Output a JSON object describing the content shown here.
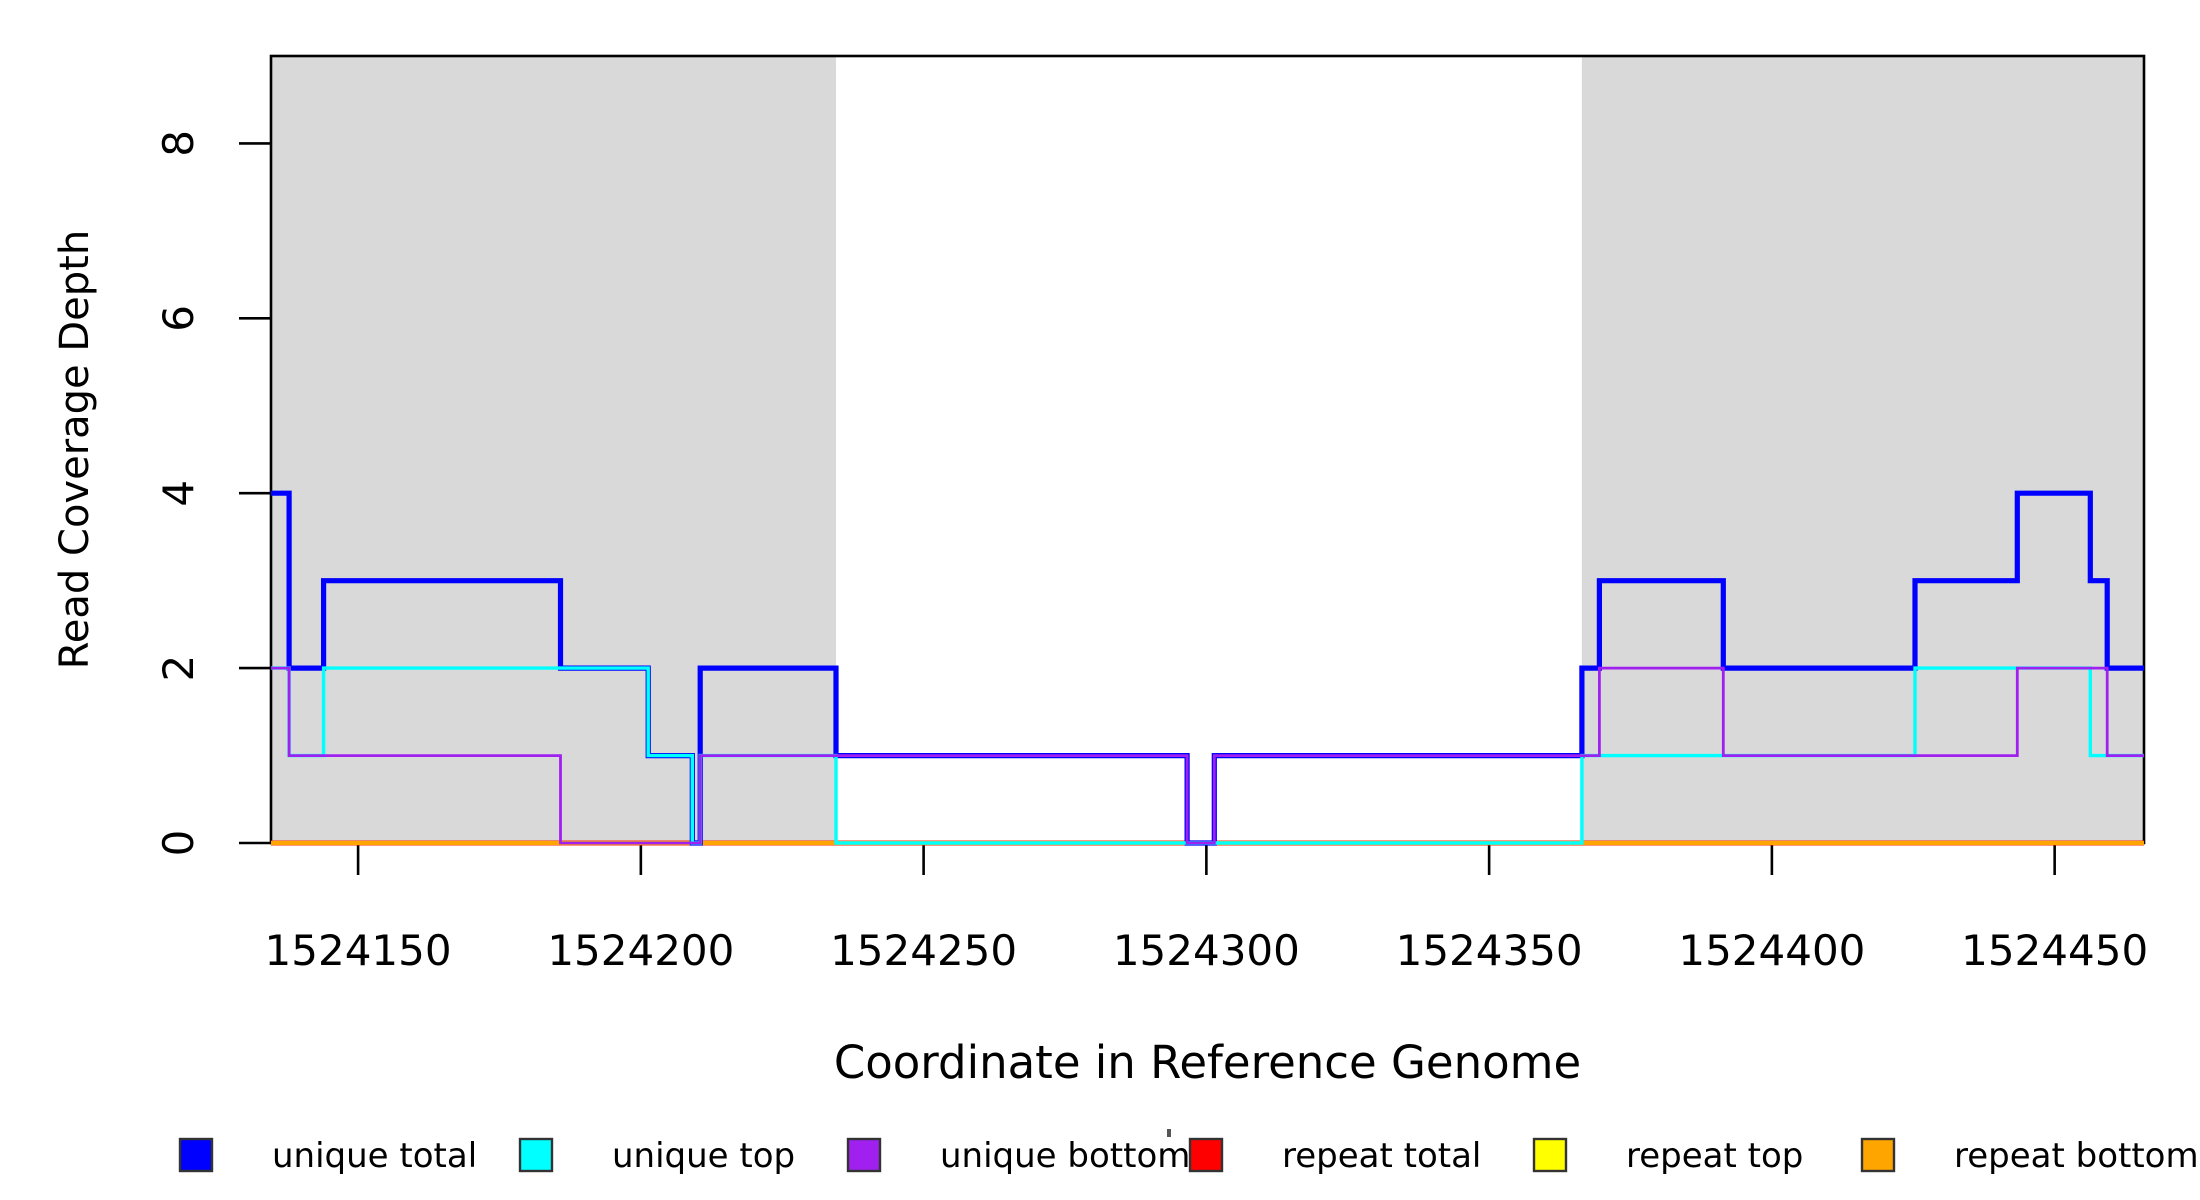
{
  "chart_data": {
    "type": "line",
    "step": true,
    "title": "",
    "xlabel": "Coordinate in Reference Genome",
    "ylabel": "Read Coverage Depth",
    "xlim": [
      1524134.6,
      1524465.8
    ],
    "ylim": [
      0,
      9
    ],
    "x_ticks": [
      1524150,
      1524200,
      1524250,
      1524300,
      1524350,
      1524400,
      1524450
    ],
    "x_tick_labels": [
      "1524150",
      "1524200",
      "1524250",
      "1524300",
      "1524350",
      "1524400",
      "1524450"
    ],
    "y_ticks": [
      0,
      2,
      4,
      6,
      8
    ],
    "y_tick_labels": [
      "0",
      "2",
      "4",
      "6",
      "8"
    ],
    "grid": false,
    "region_color": "#D9D9D9",
    "shaded_regions": [
      {
        "name": "repeat-region-left",
        "x0": 1524134.6,
        "x1": 1524234.5
      },
      {
        "name": "repeat-region-right",
        "x0": 1524366.4,
        "x1": 1524465.8
      }
    ],
    "series": [
      {
        "name": "repeat total",
        "color": "#FF0000",
        "lwd": 5.0,
        "breaks": [
          1524134.6,
          1524465.8
        ],
        "values": [
          0
        ]
      },
      {
        "name": "repeat top",
        "color": "#FFFF00",
        "lwd": 4.0,
        "breaks": [
          1524134.6,
          1524465.8
        ],
        "values": [
          0
        ]
      },
      {
        "name": "repeat bottom",
        "color": "#FFA500",
        "lwd": 4.2,
        "breaks": [
          1524134.6,
          1524465.8
        ],
        "values": [
          0
        ]
      },
      {
        "name": "unique total",
        "color": "#0000FF",
        "lwd": 5.2,
        "breaks": [
          1524134.6,
          1524137.8,
          1524143.9,
          1524185.8,
          1524201.3,
          1524209.1,
          1524210.5,
          1524234.5,
          1524296.6,
          1524301.4,
          1524366.4,
          1524369.5,
          1524391.4,
          1524425.3,
          1524443.4,
          1524456.3,
          1524459.3,
          1524465.8
        ],
        "values": [
          4,
          2,
          3,
          2,
          1,
          0,
          2,
          1,
          0,
          1,
          2,
          3,
          2,
          3,
          4,
          3,
          2
        ]
      },
      {
        "name": "unique top",
        "color": "#00FFFF",
        "lwd": 3.4,
        "breaks": [
          1524134.6,
          1524137.8,
          1524143.9,
          1524201.3,
          1524209.1,
          1524210.5,
          1524234.5,
          1524366.4,
          1524425.3,
          1524456.3,
          1524465.8
        ],
        "values": [
          2,
          1,
          2,
          1,
          0,
          1,
          0,
          1,
          2,
          1
        ]
      },
      {
        "name": "unique bottom",
        "color": "#A020F0",
        "lwd": 2.8,
        "breaks": [
          1524134.6,
          1524137.8,
          1524185.8,
          1524210.5,
          1524296.6,
          1524301.4,
          1524369.5,
          1524391.4,
          1524443.4,
          1524459.3,
          1524465.8
        ],
        "values": [
          2,
          1,
          0,
          1,
          0,
          1,
          2,
          1,
          2,
          1
        ]
      }
    ],
    "legend": {
      "position": "bottom",
      "items": [
        {
          "label": "unique total",
          "color": "#0000FF"
        },
        {
          "label": "unique top",
          "color": "#00FFFF"
        },
        {
          "label": "unique bottom",
          "color": "#A020F0"
        },
        {
          "label": "repeat total",
          "color": "#FF0000"
        },
        {
          "label": "repeat top",
          "color": "#FFFF00"
        },
        {
          "label": "repeat bottom",
          "color": "#FFA500"
        }
      ]
    }
  }
}
